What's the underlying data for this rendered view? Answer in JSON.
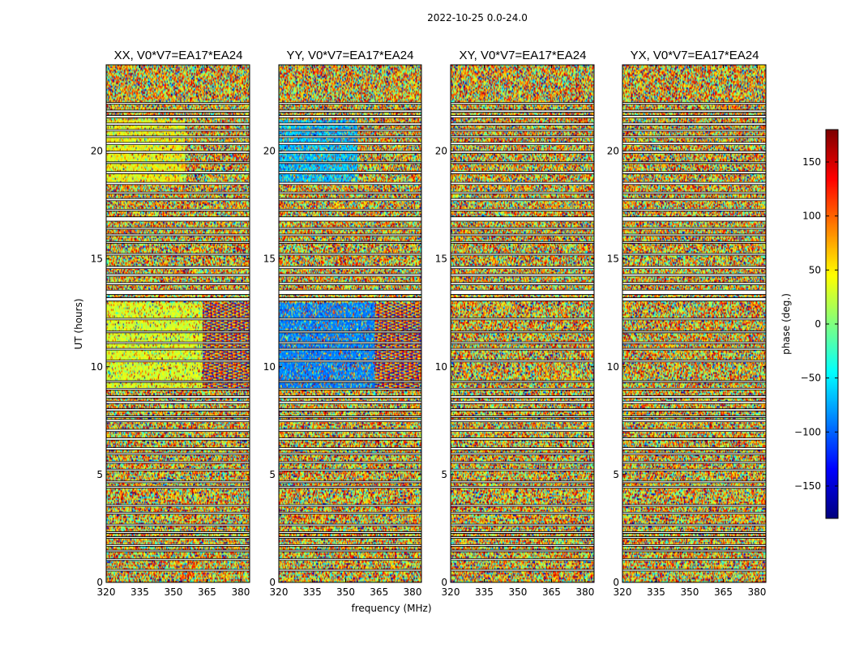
{
  "chart_data": {
    "type": "heatmap",
    "suptitle": "2022-10-25 0.0-24.0",
    "xlabel": "frequency (MHz)",
    "ylabel": "UT (hours)",
    "xlim": [
      320,
      384
    ],
    "ylim": [
      0,
      24
    ],
    "xticks": [
      320,
      335,
      350,
      365,
      380
    ],
    "yticks": [
      0,
      5,
      10,
      15,
      20
    ],
    "panels": [
      {
        "title": "XX, V0*V7=EA17*EA24",
        "polarization": "XX"
      },
      {
        "title": "YY, V0*V7=EA17*EA24",
        "polarization": "YY"
      },
      {
        "title": "XY, V0*V7=EA17*EA24",
        "polarization": "XY"
      },
      {
        "title": "YX, V0*V7=EA17*EA24",
        "polarization": "YX"
      }
    ],
    "colorbar": {
      "label": "phase (deg.)",
      "range": [
        -180,
        180
      ],
      "ticks": [
        -150,
        -100,
        -50,
        0,
        50,
        100,
        150
      ],
      "tick_labels": [
        "−150",
        "−100",
        "−50",
        "0",
        "50",
        "100",
        "150"
      ],
      "colormap": "jet"
    },
    "flagged_ut_hours": [
      [
        0.55,
        0.6
      ],
      [
        1.05,
        1.1
      ],
      [
        1.45,
        1.5
      ],
      [
        1.7,
        1.75
      ],
      [
        2.05,
        2.12
      ],
      [
        2.3,
        2.35
      ],
      [
        2.65,
        2.7
      ],
      [
        3.2,
        3.25
      ],
      [
        3.55,
        3.6
      ],
      [
        4.4,
        4.45
      ],
      [
        4.65,
        4.7
      ],
      [
        5.2,
        5.25
      ],
      [
        5.55,
        5.6
      ],
      [
        5.95,
        6.0
      ],
      [
        6.15,
        6.25
      ],
      [
        6.6,
        6.7
      ],
      [
        7.0,
        7.1
      ],
      [
        7.45,
        7.55
      ],
      [
        7.65,
        7.72
      ],
      [
        7.95,
        8.05
      ],
      [
        8.3,
        8.4
      ],
      [
        8.55,
        8.65
      ],
      [
        8.95,
        9.0
      ],
      [
        9.3,
        9.35
      ],
      [
        10.25,
        10.3
      ],
      [
        10.8,
        10.85
      ],
      [
        11.1,
        11.15
      ],
      [
        11.6,
        11.65
      ],
      [
        12.2,
        12.25
      ],
      [
        13.05,
        13.2
      ],
      [
        13.35,
        13.55
      ],
      [
        13.8,
        13.9
      ],
      [
        14.2,
        14.3
      ],
      [
        14.55,
        14.65
      ],
      [
        15.2,
        15.25
      ],
      [
        15.75,
        15.8
      ],
      [
        16.1,
        16.15
      ],
      [
        16.4,
        16.45
      ],
      [
        16.75,
        16.95
      ],
      [
        17.25,
        17.3
      ],
      [
        17.7,
        17.8
      ],
      [
        18.05,
        18.1
      ],
      [
        18.45,
        18.55
      ],
      [
        18.95,
        19.05
      ],
      [
        19.45,
        19.5
      ],
      [
        19.9,
        20.0
      ],
      [
        20.3,
        20.4
      ],
      [
        20.65,
        20.7
      ],
      [
        20.95,
        21.0
      ],
      [
        21.2,
        21.3
      ],
      [
        21.55,
        21.65
      ],
      [
        21.8,
        21.9
      ],
      [
        22.2,
        22.25
      ]
    ]
  }
}
